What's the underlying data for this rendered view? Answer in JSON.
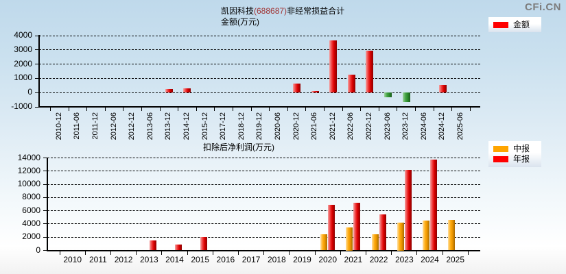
{
  "watermark": "CFi.CN",
  "chart_data": [
    {
      "type": "bar",
      "title": "凯因科技(688687)非经常损益合计",
      "title_parts": {
        "name": "凯因科技",
        "code": "(688687)",
        "rest": "非经常损益合计"
      },
      "subtitle": "金额(万元)",
      "legend": [
        {
          "name": "金额",
          "color": "#ff0000"
        }
      ],
      "legend_position": "top-right",
      "grid": true,
      "ylim": [
        -1000,
        4000
      ],
      "yticks": [
        -1000,
        0,
        1000,
        2000,
        3000,
        4000
      ],
      "categories": [
        "2010-12",
        "2011-06",
        "2011-12",
        "2012-06",
        "2012-12",
        "2013-06",
        "2013-12",
        "2014-12",
        "2015-12",
        "2017-12",
        "2018-12",
        "2019-12",
        "2020-06",
        "2020-12",
        "2021-06",
        "2021-12",
        "2022-06",
        "2022-12",
        "2023-06",
        "2023-12",
        "2024-06",
        "2024-12",
        "2025-06"
      ],
      "series": [
        {
          "name": "金额",
          "color": "#ff0000",
          "negative_color": "#2e8f2e",
          "values": [
            null,
            null,
            null,
            null,
            null,
            null,
            250,
            300,
            null,
            null,
            null,
            null,
            null,
            650,
            90,
            3650,
            1280,
            2920,
            -350,
            -670,
            null,
            550,
            null
          ]
        }
      ]
    },
    {
      "type": "bar",
      "title": "扣除后净利润(万元)",
      "legend": [
        {
          "name": "中报",
          "color": "#ffa500"
        },
        {
          "name": "年报",
          "color": "#ff0000"
        }
      ],
      "legend_position": "top-right",
      "grid": true,
      "ylim": [
        0,
        14000
      ],
      "yticks": [
        0,
        2000,
        4000,
        6000,
        8000,
        10000,
        12000,
        14000
      ],
      "categories": [
        "2010",
        "2011",
        "2012",
        "2013",
        "2014",
        "2015",
        "2016",
        "2017",
        "2018",
        "2019",
        "2020",
        "2021",
        "2022",
        "2023",
        "2024",
        "2025"
      ],
      "series": [
        {
          "name": "中报",
          "color": "#ffa500",
          "values": [
            null,
            null,
            null,
            null,
            null,
            null,
            null,
            null,
            null,
            null,
            2400,
            3500,
            2400,
            4200,
            4500,
            4650
          ]
        },
        {
          "name": "年报",
          "color": "#ff0000",
          "values": [
            null,
            null,
            null,
            1500,
            900,
            2000,
            null,
            null,
            null,
            null,
            6900,
            7200,
            5400,
            12200,
            13700,
            null
          ]
        }
      ]
    }
  ]
}
